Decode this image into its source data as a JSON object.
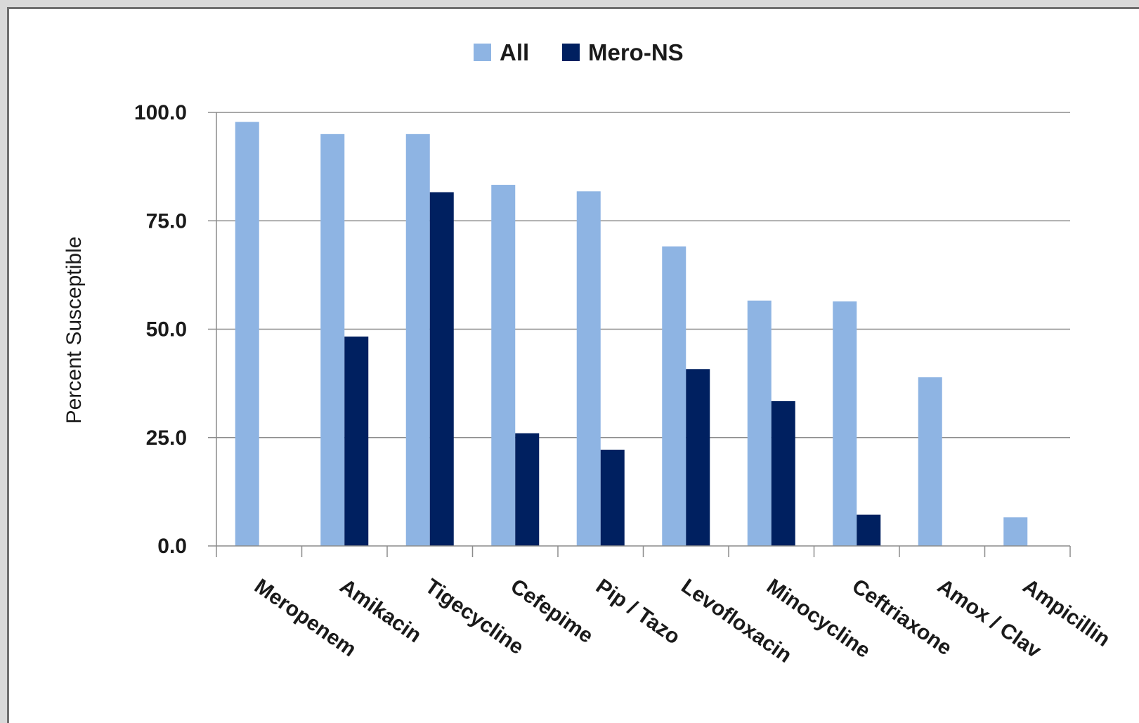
{
  "chart_data": {
    "type": "bar",
    "title": "",
    "xlabel": "",
    "ylabel": "Percent Susceptible",
    "ylim": [
      0,
      100
    ],
    "yticks": [
      "0.0",
      "25.0",
      "50.0",
      "75.0",
      "100.0"
    ],
    "ytick_values": [
      0,
      25,
      50,
      75,
      100
    ],
    "grid": true,
    "legend_position": "top",
    "categories": [
      "Meropenem",
      "Amikacin",
      "Tigecycline",
      "Cefepime",
      "Pip / Tazo",
      "Levofloxacin",
      "Minocycline",
      "Ceftriaxone",
      "Amox / Clav",
      "Ampicillin"
    ],
    "series": [
      {
        "name": "All",
        "color": "#8eb4e3",
        "values": [
          97.8,
          95.0,
          95.0,
          83.3,
          81.8,
          69.1,
          56.6,
          56.4,
          38.9,
          6.6
        ]
      },
      {
        "name": "Mero-NS",
        "color": "#002060",
        "values": [
          0,
          48.3,
          81.6,
          26.0,
          22.2,
          40.8,
          33.4,
          7.2,
          0,
          0
        ]
      }
    ]
  }
}
